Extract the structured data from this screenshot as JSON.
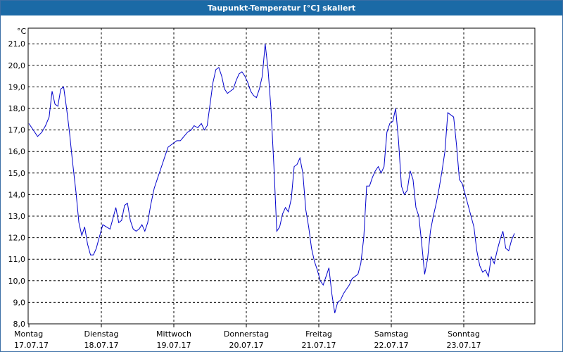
{
  "window": {
    "title": "Taupunkt-Temperatur [°C] skaliert"
  },
  "colors": {
    "titlebar": "#1b6aa6",
    "line": "#0000cc",
    "grid": "#000000",
    "background": "#ffffff"
  },
  "chart_data": {
    "type": "line",
    "title": "Taupunkt-Temperatur [°C] skaliert",
    "ylabel": "°C",
    "ylim": [
      8.0,
      21.5
    ],
    "xlim": [
      0,
      7
    ],
    "grid": true,
    "yticks": [
      {
        "v": 8.0,
        "label": "8,0"
      },
      {
        "v": 9.0,
        "label": "9,0"
      },
      {
        "v": 10.0,
        "label": "10,0"
      },
      {
        "v": 11.0,
        "label": "11,0"
      },
      {
        "v": 12.0,
        "label": "12,0"
      },
      {
        "v": 13.0,
        "label": "13,0"
      },
      {
        "v": 14.0,
        "label": "14,0"
      },
      {
        "v": 15.0,
        "label": "15,0"
      },
      {
        "v": 16.0,
        "label": "16,0"
      },
      {
        "v": 17.0,
        "label": "17,0"
      },
      {
        "v": 18.0,
        "label": "18,0"
      },
      {
        "v": 19.0,
        "label": "19,0"
      },
      {
        "v": 20.0,
        "label": "20,0"
      },
      {
        "v": 21.0,
        "label": "21,0"
      }
    ],
    "xticks": [
      {
        "v": 0,
        "day": "Montag",
        "date": "17.07.17"
      },
      {
        "v": 1,
        "day": "Dienstag",
        "date": "18.07.17"
      },
      {
        "v": 2,
        "day": "Mittwoch",
        "date": "19.07.17"
      },
      {
        "v": 3,
        "day": "Donnerstag",
        "date": "20.07.17"
      },
      {
        "v": 4,
        "day": "Freitag",
        "date": "21.07.17"
      },
      {
        "v": 5,
        "day": "Samstag",
        "date": "22.07.17"
      },
      {
        "v": 6,
        "day": "Sonntag",
        "date": "23.07.17"
      }
    ],
    "series": [
      {
        "color": "#0000cc",
        "points": [
          [
            0.0,
            17.3
          ],
          [
            0.06,
            17.0
          ],
          [
            0.12,
            16.7
          ],
          [
            0.18,
            16.9
          ],
          [
            0.23,
            17.2
          ],
          [
            0.28,
            17.6
          ],
          [
            0.32,
            18.8
          ],
          [
            0.36,
            18.2
          ],
          [
            0.4,
            18.1
          ],
          [
            0.44,
            18.9
          ],
          [
            0.48,
            19.0
          ],
          [
            0.52,
            18.0
          ],
          [
            0.56,
            16.9
          ],
          [
            0.6,
            15.6
          ],
          [
            0.65,
            14.1
          ],
          [
            0.69,
            12.7
          ],
          [
            0.73,
            12.1
          ],
          [
            0.77,
            12.5
          ],
          [
            0.81,
            11.7
          ],
          [
            0.85,
            11.2
          ],
          [
            0.89,
            11.2
          ],
          [
            0.93,
            11.5
          ],
          [
            0.97,
            12.0
          ],
          [
            1.02,
            12.6
          ],
          [
            1.07,
            12.5
          ],
          [
            1.12,
            12.4
          ],
          [
            1.16,
            12.9
          ],
          [
            1.2,
            13.4
          ],
          [
            1.24,
            12.7
          ],
          [
            1.28,
            12.8
          ],
          [
            1.32,
            13.5
          ],
          [
            1.36,
            13.6
          ],
          [
            1.4,
            12.8
          ],
          [
            1.44,
            12.4
          ],
          [
            1.48,
            12.3
          ],
          [
            1.52,
            12.4
          ],
          [
            1.56,
            12.6
          ],
          [
            1.6,
            12.3
          ],
          [
            1.64,
            12.7
          ],
          [
            1.68,
            13.5
          ],
          [
            1.73,
            14.3
          ],
          [
            1.78,
            14.8
          ],
          [
            1.83,
            15.3
          ],
          [
            1.88,
            15.8
          ],
          [
            1.92,
            16.2
          ],
          [
            1.96,
            16.3
          ],
          [
            2.0,
            16.4
          ],
          [
            2.04,
            16.5
          ],
          [
            2.09,
            16.5
          ],
          [
            2.14,
            16.7
          ],
          [
            2.19,
            16.9
          ],
          [
            2.24,
            17.0
          ],
          [
            2.28,
            17.2
          ],
          [
            2.33,
            17.1
          ],
          [
            2.38,
            17.3
          ],
          [
            2.42,
            17.0
          ],
          [
            2.46,
            17.2
          ],
          [
            2.5,
            18.2
          ],
          [
            2.54,
            19.2
          ],
          [
            2.58,
            19.8
          ],
          [
            2.62,
            19.9
          ],
          [
            2.66,
            19.5
          ],
          [
            2.7,
            18.9
          ],
          [
            2.74,
            18.7
          ],
          [
            2.78,
            18.8
          ],
          [
            2.82,
            18.9
          ],
          [
            2.86,
            19.3
          ],
          [
            2.9,
            19.6
          ],
          [
            2.94,
            19.7
          ],
          [
            2.98,
            19.5
          ],
          [
            3.02,
            19.2
          ],
          [
            3.06,
            18.8
          ],
          [
            3.1,
            18.6
          ],
          [
            3.14,
            18.5
          ],
          [
            3.18,
            18.9
          ],
          [
            3.22,
            19.5
          ],
          [
            3.26,
            21.0
          ],
          [
            3.3,
            19.8
          ],
          [
            3.34,
            18.0
          ],
          [
            3.38,
            15.4
          ],
          [
            3.42,
            12.3
          ],
          [
            3.46,
            12.5
          ],
          [
            3.5,
            13.1
          ],
          [
            3.54,
            13.4
          ],
          [
            3.58,
            13.2
          ],
          [
            3.62,
            13.8
          ],
          [
            3.66,
            15.3
          ],
          [
            3.7,
            15.4
          ],
          [
            3.74,
            15.7
          ],
          [
            3.78,
            15.0
          ],
          [
            3.82,
            13.3
          ],
          [
            3.86,
            12.5
          ],
          [
            3.9,
            11.5
          ],
          [
            3.94,
            10.9
          ],
          [
            3.98,
            10.5
          ],
          [
            4.02,
            10.0
          ],
          [
            4.06,
            9.8
          ],
          [
            4.1,
            10.2
          ],
          [
            4.14,
            10.6
          ],
          [
            4.18,
            9.4
          ],
          [
            4.22,
            8.5
          ],
          [
            4.26,
            9.0
          ],
          [
            4.3,
            9.1
          ],
          [
            4.34,
            9.4
          ],
          [
            4.38,
            9.6
          ],
          [
            4.42,
            9.8
          ],
          [
            4.46,
            10.1
          ],
          [
            4.5,
            10.2
          ],
          [
            4.54,
            10.3
          ],
          [
            4.58,
            10.8
          ],
          [
            4.62,
            12.0
          ],
          [
            4.66,
            14.4
          ],
          [
            4.7,
            14.4
          ],
          [
            4.74,
            14.8
          ],
          [
            4.78,
            15.1
          ],
          [
            4.82,
            15.3
          ],
          [
            4.86,
            15.0
          ],
          [
            4.9,
            15.3
          ],
          [
            4.94,
            16.9
          ],
          [
            4.98,
            17.3
          ],
          [
            5.02,
            17.4
          ],
          [
            5.06,
            18.0
          ],
          [
            5.1,
            16.5
          ],
          [
            5.14,
            14.4
          ],
          [
            5.18,
            14.0
          ],
          [
            5.22,
            14.2
          ],
          [
            5.26,
            15.1
          ],
          [
            5.3,
            14.7
          ],
          [
            5.34,
            13.4
          ],
          [
            5.38,
            13.0
          ],
          [
            5.42,
            11.7
          ],
          [
            5.46,
            10.3
          ],
          [
            5.5,
            11.0
          ],
          [
            5.54,
            12.3
          ],
          [
            5.58,
            13.0
          ],
          [
            5.62,
            13.6
          ],
          [
            5.66,
            14.3
          ],
          [
            5.7,
            15.1
          ],
          [
            5.74,
            16.0
          ],
          [
            5.78,
            17.8
          ],
          [
            5.82,
            17.7
          ],
          [
            5.86,
            17.6
          ],
          [
            5.9,
            16.3
          ],
          [
            5.94,
            14.7
          ],
          [
            5.98,
            14.5
          ],
          [
            6.02,
            14.0
          ],
          [
            6.06,
            13.5
          ],
          [
            6.1,
            13.0
          ],
          [
            6.14,
            12.5
          ],
          [
            6.18,
            11.4
          ],
          [
            6.22,
            10.7
          ],
          [
            6.26,
            10.4
          ],
          [
            6.3,
            10.5
          ],
          [
            6.34,
            10.2
          ],
          [
            6.38,
            11.1
          ],
          [
            6.42,
            10.8
          ],
          [
            6.46,
            11.4
          ],
          [
            6.5,
            11.9
          ],
          [
            6.54,
            12.3
          ],
          [
            6.58,
            11.5
          ],
          [
            6.62,
            11.4
          ],
          [
            6.66,
            11.9
          ],
          [
            6.7,
            12.2
          ]
        ]
      }
    ]
  }
}
